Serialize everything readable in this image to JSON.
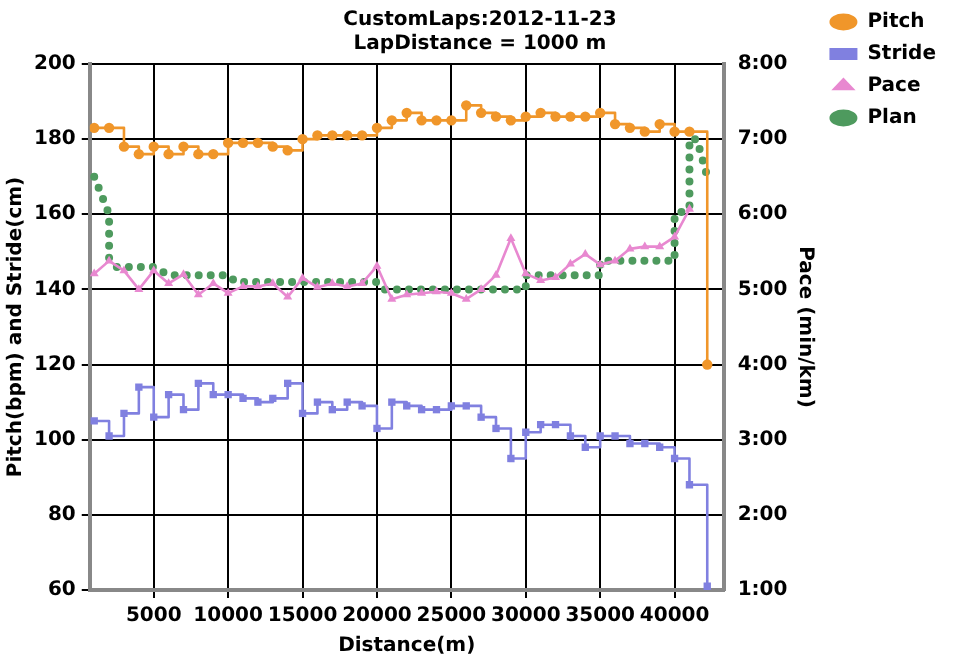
{
  "chart_data": {
    "type": "line",
    "title": "CustomLaps:2012-11-23",
    "subtitle": "LapDistance = 1000 m",
    "xlabel": "Distance(m)",
    "ylabel": "Pitch(bpm) and Stride(cm)",
    "y2label": "Pace (min/km)",
    "x": [
      1000,
      2000,
      3000,
      4000,
      5000,
      6000,
      7000,
      8000,
      9000,
      10000,
      11000,
      12000,
      13000,
      14000,
      15000,
      16000,
      17000,
      18000,
      19000,
      20000,
      21000,
      22000,
      23000,
      24000,
      25000,
      26000,
      27000,
      28000,
      29000,
      30000,
      31000,
      32000,
      33000,
      34000,
      35000,
      36000,
      37000,
      38000,
      39000,
      40000,
      41000,
      42195
    ],
    "series": [
      {
        "name": "Pitch",
        "type": "step",
        "color": "#f0962a",
        "marker": "circle",
        "axis": "y",
        "values": [
          183,
          183,
          178,
          176,
          178,
          176,
          178,
          176,
          176,
          179,
          179,
          179,
          178,
          177,
          180,
          181,
          181,
          181,
          181,
          183,
          185,
          187,
          185,
          185,
          185,
          189,
          187,
          186,
          185,
          186,
          187,
          186,
          186,
          186,
          187,
          184,
          183,
          182,
          184,
          182,
          182,
          120
        ]
      },
      {
        "name": "Stride",
        "type": "step",
        "color": "#8080e0",
        "marker": "square",
        "axis": "y",
        "values": [
          105,
          101,
          107,
          114,
          106,
          112,
          108,
          115,
          112,
          112,
          111,
          110,
          111,
          115,
          107,
          110,
          108,
          110,
          109,
          103,
          110,
          109,
          108,
          108,
          109,
          109,
          106,
          103,
          95,
          102,
          104,
          104,
          101,
          98,
          101,
          101,
          99,
          99,
          98,
          95,
          88,
          61
        ]
      },
      {
        "name": "Pace",
        "type": "line",
        "color": "#e888d0",
        "marker": "triangle",
        "axis": "y2",
        "values": [
          5.21,
          5.38,
          5.25,
          5.0,
          5.25,
          5.08,
          5.2,
          4.93,
          5.08,
          4.95,
          5.04,
          5.04,
          5.08,
          4.9,
          5.15,
          5.03,
          5.08,
          5.04,
          5.08,
          5.31,
          4.87,
          4.93,
          4.95,
          4.97,
          4.95,
          4.87,
          5.0,
          5.19,
          5.68,
          5.21,
          5.12,
          5.16,
          5.34,
          5.47,
          5.33,
          5.38,
          5.54,
          5.57,
          5.57,
          5.7,
          6.07,
          null
        ]
      },
      {
        "name": "Plan",
        "type": "line",
        "color": "#4e9a5e",
        "marker": "none",
        "line_style": "dotted",
        "axis": "y2",
        "x": [
          1000,
          2000,
          2000,
          2500,
          5000,
          6000,
          10000,
          10500,
          20000,
          20500,
          30000,
          30000,
          35000,
          35000,
          40000,
          40000,
          41000,
          41000,
          41500,
          42195
        ],
        "values": [
          6.5,
          6.0,
          5.42,
          5.3,
          5.3,
          5.19,
          5.19,
          5.1,
          5.1,
          5.0,
          5.0,
          5.19,
          5.19,
          5.38,
          5.38,
          6.0,
          6.07,
          7.0,
          7.0,
          6.5
        ]
      }
    ],
    "xlim": [
      700,
      43300
    ],
    "xticks": [
      5000,
      10000,
      15000,
      20000,
      25000,
      30000,
      35000,
      40000
    ],
    "ylim": [
      60,
      200
    ],
    "yticks": [
      60,
      80,
      100,
      120,
      140,
      160,
      180,
      200
    ],
    "y2lim": [
      1,
      8
    ],
    "y2ticks": [
      {
        "value": 1,
        "label": "1:00"
      },
      {
        "value": 2,
        "label": "2:00"
      },
      {
        "value": 3,
        "label": "3:00"
      },
      {
        "value": 4,
        "label": "4:00"
      },
      {
        "value": 5,
        "label": "5:00"
      },
      {
        "value": 6,
        "label": "6:00"
      },
      {
        "value": 7,
        "label": "7:00"
      },
      {
        "value": 8,
        "label": "8:00"
      }
    ],
    "grid": true,
    "legend": "top right"
  }
}
